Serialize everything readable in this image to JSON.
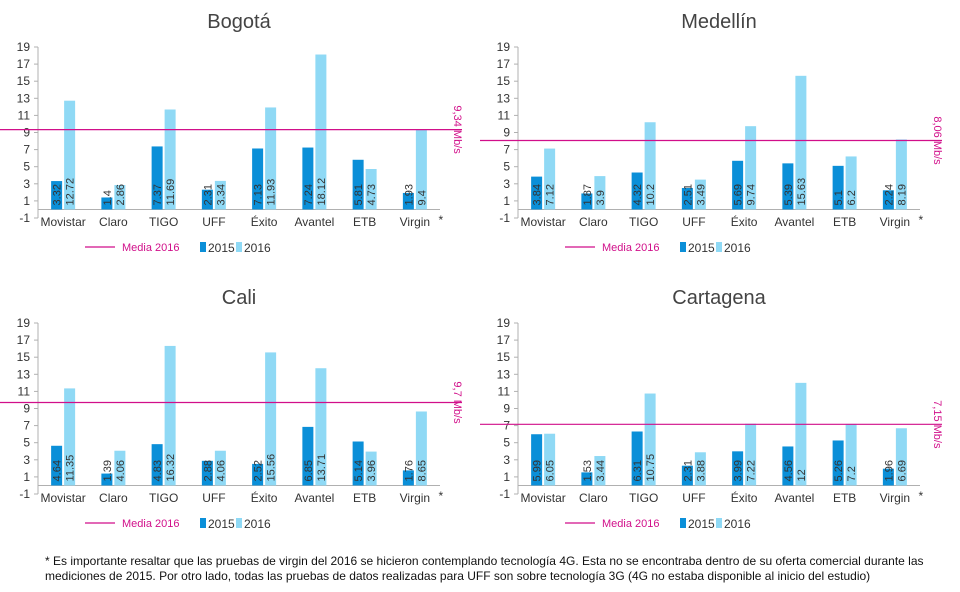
{
  "colors": {
    "s2015": "#0b8fd8",
    "s2016": "#8fd9f5",
    "media": "#d10f8a",
    "axis": "#b0b0b0"
  },
  "legend": {
    "media": "Media 2016",
    "y2015": "2015",
    "y2016": "2016"
  },
  "footnote": "* Es importante resaltar que las pruebas de virgin del 2016 se hicieron contemplando tecnología 4G. Esta no se encontraba dentro de su oferta comercial durante las mediciones de 2015. Por otro lado, todas las pruebas de datos realizadas para UFF son sobre tecnología 3G (4G no estaba disponible al inicio del estudio)",
  "chart_data": [
    {
      "type": "bar",
      "title": "Bogotá",
      "categories": [
        "Movistar",
        "Claro",
        "TIGO",
        "UFF",
        "Éxito",
        "Avantel",
        "ETB",
        "Virgin"
      ],
      "asterisk": "*",
      "yticks": [
        "-1",
        "1",
        "3",
        "5",
        "7",
        "9",
        "11",
        "13",
        "15",
        "17",
        "19"
      ],
      "ylim": [
        -1,
        19
      ],
      "series": [
        {
          "name": "2015",
          "values": [
            3.32,
            1.4,
            7.37,
            2.31,
            7.13,
            7.24,
            5.81,
            1.93
          ],
          "labels": [
            "3.32",
            "1.4",
            "7.37",
            "2.31",
            "7.13",
            "7.24",
            "5.81",
            "1.93"
          ]
        },
        {
          "name": "2016",
          "values": [
            12.72,
            2.86,
            11.69,
            3.34,
            11.93,
            18.12,
            4.73,
            9.4
          ],
          "labels": [
            "12.72",
            "2.86",
            "11.69",
            "3.34",
            "11.93",
            "18.12",
            "4.73",
            "9.4"
          ]
        }
      ],
      "media": 9.34,
      "media_label": "9,34 Mb/s"
    },
    {
      "type": "bar",
      "title": "Medellín",
      "categories": [
        "Movistar",
        "Claro",
        "TIGO",
        "UFF",
        "Éxito",
        "Avantel",
        "ETB",
        "Virgin"
      ],
      "asterisk": "*",
      "yticks": [
        "-1",
        "1",
        "3",
        "5",
        "7",
        "9",
        "11",
        "13",
        "15",
        "17",
        "19"
      ],
      "ylim": [
        -1,
        19
      ],
      "series": [
        {
          "name": "2015",
          "values": [
            3.84,
            1.87,
            4.32,
            2.51,
            5.69,
            5.39,
            5.1,
            2.24
          ],
          "labels": [
            "3.84",
            "1.87",
            "4.32",
            "2.51",
            "5.69",
            "5.39",
            "5.1",
            "2.24"
          ]
        },
        {
          "name": "2016",
          "values": [
            7.12,
            3.9,
            10.2,
            3.49,
            9.74,
            15.63,
            6.2,
            8.19
          ],
          "labels": [
            "7.12",
            "3.9",
            "10.2",
            "3.49",
            "9.74",
            "15.63",
            "6.2",
            "8.19"
          ]
        }
      ],
      "media": 8.06,
      "media_label": "8,06 Mb/s"
    },
    {
      "type": "bar",
      "title": "Cali",
      "categories": [
        "Movistar",
        "Claro",
        "TIGO",
        "UFF",
        "Éxito",
        "Avantel",
        "ETB",
        "Virgin"
      ],
      "asterisk": "*",
      "yticks": [
        "-1",
        "1",
        "3",
        "5",
        "7",
        "9",
        "11",
        "13",
        "15",
        "17",
        "19"
      ],
      "ylim": [
        -1,
        19
      ],
      "series": [
        {
          "name": "2015",
          "values": [
            4.64,
            1.39,
            4.83,
            2.88,
            2.52,
            6.85,
            5.14,
            1.76
          ],
          "labels": [
            "4.64",
            "1.39",
            "4.83",
            "2.88",
            "2.52",
            "6.85",
            "5.14",
            "1.76"
          ]
        },
        {
          "name": "2016",
          "values": [
            11.35,
            4.06,
            16.32,
            4.06,
            15.56,
            13.71,
            3.96,
            8.65
          ],
          "labels": [
            "11.35",
            "4.06",
            "16.32",
            "4.06",
            "15.56",
            "13.71",
            "3.96",
            "8.65"
          ]
        }
      ],
      "media": 9.7,
      "media_label": "9,7  Mb/s"
    },
    {
      "type": "bar",
      "title": "Cartagena",
      "categories": [
        "Movistar",
        "Claro",
        "TIGO",
        "UFF",
        "Éxito",
        "Avantel",
        "ETB",
        "Virgin"
      ],
      "asterisk": "*",
      "yticks": [
        "-1",
        "1",
        "3",
        "5",
        "7",
        "9",
        "11",
        "13",
        "15",
        "17",
        "19"
      ],
      "ylim": [
        -1,
        19
      ],
      "series": [
        {
          "name": "2015",
          "values": [
            5.99,
            1.53,
            6.31,
            2.31,
            3.99,
            4.56,
            5.26,
            1.96
          ],
          "labels": [
            "5.99",
            "1.53",
            "6.31",
            "2.31",
            "3.99",
            "4.56",
            "5.26",
            "1.96"
          ]
        },
        {
          "name": "2016",
          "values": [
            6.05,
            3.44,
            10.75,
            3.88,
            7.22,
            12,
            7.2,
            6.69
          ],
          "labels": [
            "6.05",
            "3.44",
            "10.75",
            "3.88",
            "7.22",
            "12",
            "7.2",
            "6.69"
          ]
        }
      ],
      "media": 7.15,
      "media_label": "7,15  Mb/s"
    }
  ]
}
